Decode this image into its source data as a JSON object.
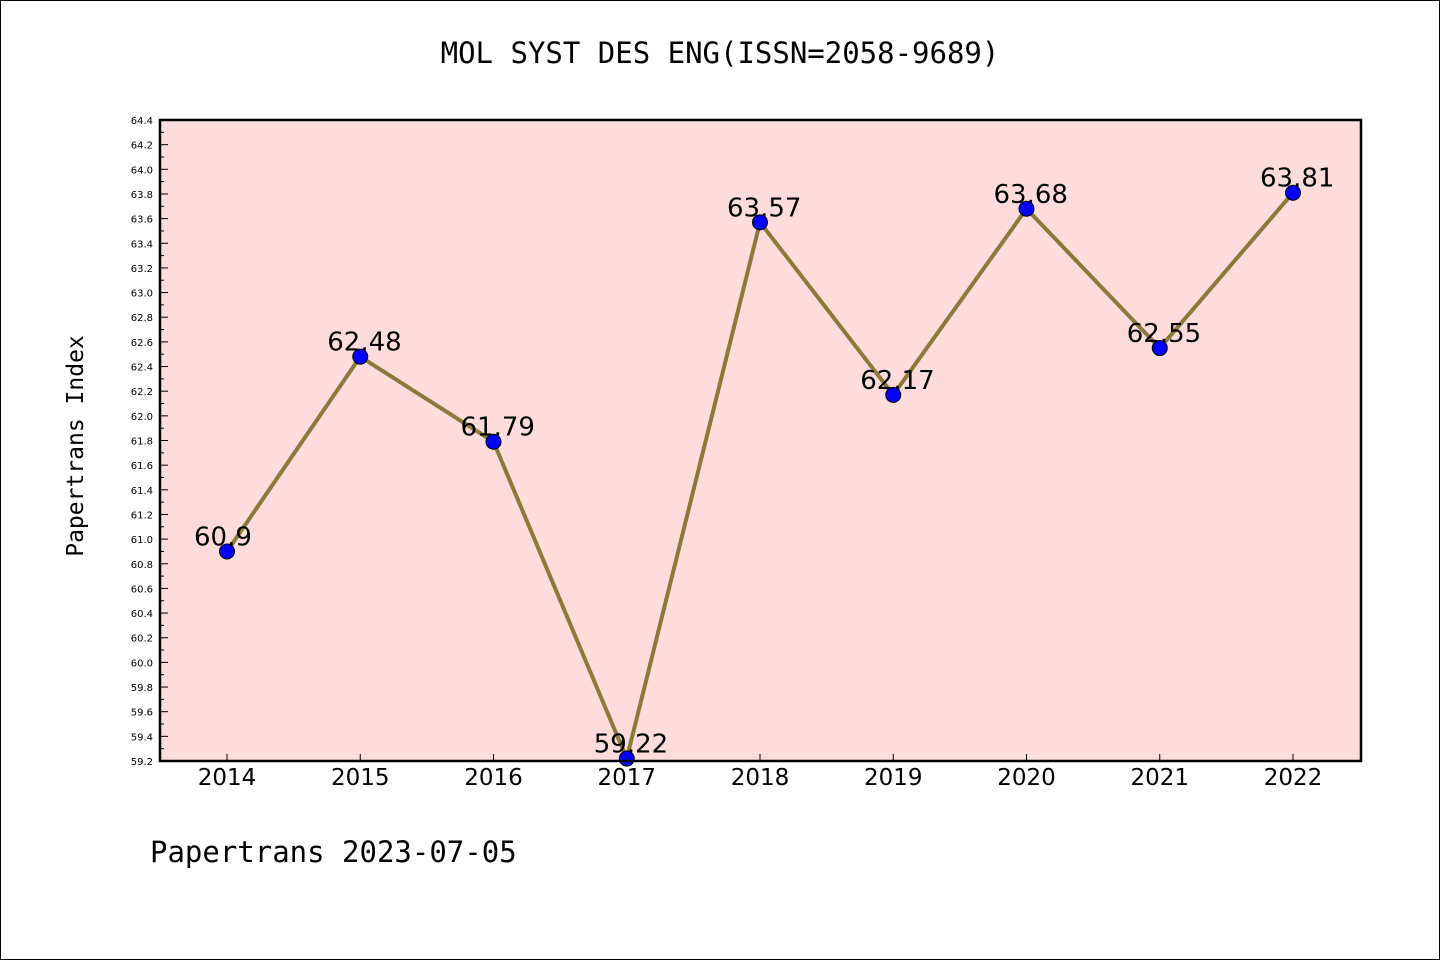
{
  "title": "MOL SYST DES ENG(ISSN=2058-9689)",
  "footer": "Papertrans 2023-07-05",
  "colors": {
    "plot_background": "#fddcdb",
    "line": "#8c7a3a",
    "marker": "#0000ff"
  },
  "chart_data": {
    "type": "line",
    "title": "MOL SYST DES ENG(ISSN=2058-9689)",
    "xlabel": "",
    "ylabel": "Papertrans Index",
    "categories": [
      "2014",
      "2015",
      "2016",
      "2017",
      "2018",
      "2019",
      "2020",
      "2021",
      "2022"
    ],
    "series": [
      {
        "values": [
          60.9,
          62.48,
          61.79,
          59.22,
          63.57,
          62.17,
          63.68,
          62.55,
          63.81
        ],
        "labels": [
          "60.9",
          "62.48",
          "61.79",
          "59.22",
          "63.57",
          "62.17",
          "63.68",
          "62.55",
          "63.81"
        ]
      }
    ],
    "ylim": [
      59.2,
      64.4
    ],
    "yticks": [
      "59.2",
      "59.4",
      "59.6",
      "59.8",
      "60.0",
      "60.2",
      "60.4",
      "60.6",
      "60.8",
      "61.0",
      "61.2",
      "61.4",
      "61.6",
      "61.8",
      "62.0",
      "62.2",
      "62.4",
      "62.6",
      "62.8",
      "63.0",
      "63.2",
      "63.4",
      "63.6",
      "63.8",
      "64.0",
      "64.2",
      "64.4"
    ],
    "grid": false,
    "legend": "none"
  }
}
